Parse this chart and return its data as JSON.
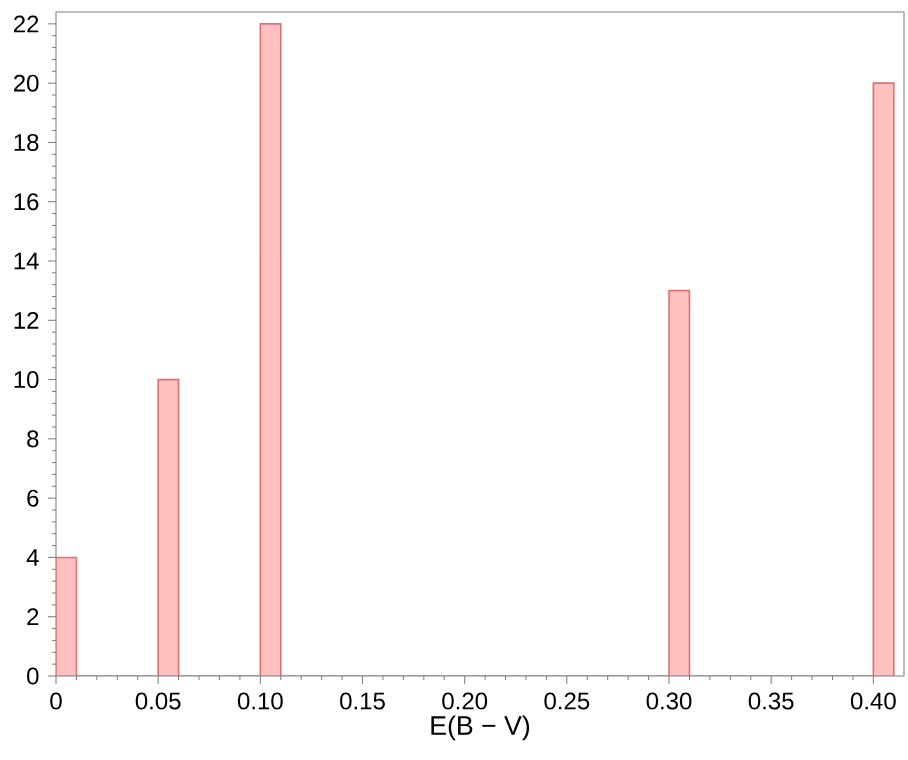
{
  "chart_data": {
    "type": "histogram",
    "xlabel": "E(B − V)",
    "bins": [
      0,
      0.01,
      0.02,
      0.03,
      0.04,
      0.05,
      0.06,
      0.07,
      0.08,
      0.09,
      0.1,
      0.11,
      0.12,
      0.13,
      0.14,
      0.15,
      0.16,
      0.17,
      0.18,
      0.19,
      0.2,
      0.21,
      0.22,
      0.23,
      0.24,
      0.25,
      0.26,
      0.27,
      0.28,
      0.29,
      0.3,
      0.31,
      0.32,
      0.33,
      0.34,
      0.35,
      0.36,
      0.37,
      0.38,
      0.39,
      0.4,
      0.41
    ],
    "values": [
      4,
      0,
      0,
      0,
      0,
      10,
      0,
      0,
      0,
      0,
      22,
      0,
      0,
      0,
      0,
      0,
      0,
      0,
      0,
      0,
      0,
      0,
      0,
      0,
      0,
      0,
      0,
      0,
      0,
      0,
      13,
      0,
      0,
      0,
      0,
      0,
      0,
      0,
      0,
      0,
      20
    ],
    "color": "#ffc0c0",
    "xlim": [
      0,
      0.415
    ],
    "ylim": [
      0,
      22.4
    ],
    "xticks": [
      0,
      0.05,
      {
        "value": 0.1,
        "label": "0.10"
      },
      0.15,
      {
        "value": 0.2,
        "label": "0.20"
      },
      0.25,
      {
        "value": 0.3,
        "label": "0.30"
      },
      0.35,
      {
        "value": 0.4,
        "label": "0.40"
      }
    ],
    "yticks": [
      0,
      2,
      4,
      6,
      8,
      10,
      12,
      14,
      16,
      18,
      20,
      22
    ]
  }
}
